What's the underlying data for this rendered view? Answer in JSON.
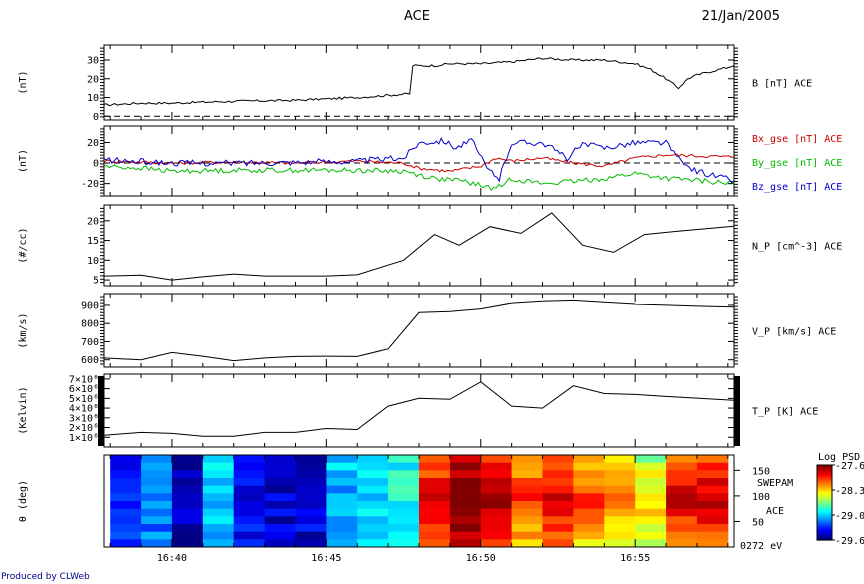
{
  "header": {
    "title": "ACE",
    "date": "21/Jan/2005"
  },
  "footer": {
    "credit": "Produced by CLWeb"
  },
  "chart_data": {
    "type": "line",
    "x_axis": {
      "tick_labels": [
        "16:40",
        "16:45",
        "16:50",
        "16:55"
      ],
      "tick_minutes": [
        40,
        45,
        50,
        55
      ],
      "range_minutes": [
        37.8,
        58.2
      ]
    },
    "panels": [
      {
        "ylabel": "(nT)",
        "ylim": [
          -2,
          38
        ],
        "ticks": [
          0,
          10,
          20,
          30
        ],
        "legend": [
          {
            "text": "B [nT] ACE",
            "color": "#000000"
          }
        ],
        "zero_line": true,
        "series": [
          {
            "name": "B [nT] ACE",
            "color": "#000000",
            "noise": 0.6,
            "points": [
              [
                37.8,
                6
              ],
              [
                39,
                7
              ],
              [
                40,
                7
              ],
              [
                42,
                8
              ],
              [
                44,
                8.5
              ],
              [
                46,
                10
              ],
              [
                47.7,
                12
              ],
              [
                47.8,
                27
              ],
              [
                48.5,
                27
              ],
              [
                49,
                28
              ],
              [
                50,
                28
              ],
              [
                51,
                29
              ],
              [
                52,
                31
              ],
              [
                53,
                30
              ],
              [
                54,
                30
              ],
              [
                55,
                28
              ],
              [
                55.5,
                25
              ],
              [
                56,
                20
              ],
              [
                56.4,
                15
              ],
              [
                56.7,
                20
              ],
              [
                57,
                22
              ],
              [
                58.2,
                27
              ]
            ]
          }
        ]
      },
      {
        "ylabel": "(nT)",
        "ylim": [
          -32,
          36
        ],
        "ticks": [
          -20,
          0,
          20
        ],
        "legend": [
          {
            "text": "Bx_gse [nT] ACE",
            "color": "#cc0000"
          },
          {
            "text": "By_gse [nT] ACE",
            "color": "#00bb00"
          },
          {
            "text": "Bz_gse [nT] ACE",
            "color": "#0000cc"
          }
        ],
        "zero_line": true,
        "series": [
          {
            "name": "Bx_gse [nT] ACE",
            "color": "#cc0000",
            "noise": 1.5,
            "points": [
              [
                37.8,
                2
              ],
              [
                40,
                0
              ],
              [
                42,
                1
              ],
              [
                44,
                0
              ],
              [
                46,
                2
              ],
              [
                47.5,
                0
              ],
              [
                48,
                -5
              ],
              [
                49,
                -8
              ],
              [
                50,
                -3
              ],
              [
                50.5,
                5
              ],
              [
                51,
                2
              ],
              [
                52,
                5
              ],
              [
                53,
                0
              ],
              [
                54,
                -3
              ],
              [
                55,
                5
              ],
              [
                56,
                8
              ],
              [
                57,
                7
              ],
              [
                58.2,
                6
              ]
            ]
          },
          {
            "name": "By_gse [nT] ACE",
            "color": "#00bb00",
            "noise": 2.5,
            "points": [
              [
                37.8,
                -3
              ],
              [
                39,
                -5
              ],
              [
                40,
                -8
              ],
              [
                42,
                -7
              ],
              [
                44,
                -7
              ],
              [
                46,
                -7
              ],
              [
                47.5,
                -8
              ],
              [
                48.5,
                -15
              ],
              [
                49.5,
                -18
              ],
              [
                50,
                -22
              ],
              [
                50.5,
                -25
              ],
              [
                51,
                -15
              ],
              [
                52,
                -20
              ],
              [
                53,
                -18
              ],
              [
                54,
                -15
              ],
              [
                55,
                -10
              ],
              [
                56,
                -15
              ],
              [
                57,
                -17
              ],
              [
                58.2,
                -20
              ]
            ]
          },
          {
            "name": "Bz_gse [nT] ACE",
            "color": "#0000cc",
            "noise": 3,
            "points": [
              [
                37.8,
                3
              ],
              [
                40,
                0
              ],
              [
                42,
                0
              ],
              [
                44,
                1
              ],
              [
                46,
                2
              ],
              [
                47.5,
                5
              ],
              [
                48,
                20
              ],
              [
                48.8,
                22
              ],
              [
                49.2,
                15
              ],
              [
                49.7,
                22
              ],
              [
                50.2,
                -5
              ],
              [
                50.6,
                -15
              ],
              [
                51,
                20
              ],
              [
                52,
                20
              ],
              [
                52.8,
                5
              ],
              [
                53.3,
                18
              ],
              [
                54,
                15
              ],
              [
                55,
                20
              ],
              [
                56,
                20
              ],
              [
                56.5,
                0
              ],
              [
                57,
                -8
              ],
              [
                58.2,
                -17
              ]
            ]
          }
        ]
      },
      {
        "ylabel": "(#/cc)",
        "ylim": [
          3.5,
          24
        ],
        "ticks": [
          5,
          10,
          15,
          20
        ],
        "legend": [
          {
            "text": "N_P [cm^-3] ACE",
            "color": "#000000"
          }
        ],
        "series": [
          {
            "name": "N_P [cm^-3] ACE",
            "color": "#000000",
            "points": [
              [
                37.8,
                6
              ],
              [
                39,
                6.2
              ],
              [
                40,
                5
              ],
              [
                41,
                5.8
              ],
              [
                42,
                6.5
              ],
              [
                43,
                6
              ],
              [
                44,
                6
              ],
              [
                45,
                6
              ],
              [
                46,
                6.3
              ],
              [
                47.5,
                10
              ],
              [
                48.5,
                16.5
              ],
              [
                49.3,
                13.8
              ],
              [
                50.3,
                18.5
              ],
              [
                51.3,
                16.8
              ],
              [
                52.3,
                22
              ],
              [
                53.3,
                13.8
              ],
              [
                54.3,
                12
              ],
              [
                55.3,
                16.5
              ],
              [
                56.3,
                17.3
              ],
              [
                58.2,
                18.6
              ]
            ]
          }
        ]
      },
      {
        "ylabel": "(km/s)",
        "ylim": [
          560,
          960
        ],
        "ticks": [
          600,
          700,
          800,
          900
        ],
        "legend": [
          {
            "text": "V_P [km/s] ACE",
            "color": "#000000"
          }
        ],
        "series": [
          {
            "name": "V_P [km/s] ACE",
            "color": "#000000",
            "points": [
              [
                37.8,
                610
              ],
              [
                39,
                600
              ],
              [
                40,
                640
              ],
              [
                41,
                620
              ],
              [
                42,
                595
              ],
              [
                43,
                610
              ],
              [
                44,
                618
              ],
              [
                45,
                620
              ],
              [
                46,
                618
              ],
              [
                47,
                660
              ],
              [
                48,
                860
              ],
              [
                49,
                865
              ],
              [
                50,
                880
              ],
              [
                51,
                910
              ],
              [
                52,
                920
              ],
              [
                53,
                925
              ],
              [
                54,
                915
              ],
              [
                55,
                905
              ],
              [
                56,
                900
              ],
              [
                57,
                895
              ],
              [
                58.2,
                890
              ]
            ]
          }
        ]
      },
      {
        "ylabel": "(Kelvin)",
        "ylim": [
          0,
          7500000
        ],
        "ticks": [
          1000000,
          2000000,
          3000000,
          4000000,
          5000000,
          6000000,
          7000000
        ],
        "tick_labels": [
          "1×10⁶",
          "2×10⁶",
          "3×10⁶",
          "4×10⁶",
          "5×10⁶",
          "6×10⁶",
          "7×10⁶"
        ],
        "legend": [
          {
            "text": "T_P [K] ACE",
            "color": "#000000"
          }
        ],
        "series": [
          {
            "name": "T_P [K] ACE",
            "color": "#000000",
            "points": [
              [
                37.8,
                1200000
              ],
              [
                39,
                1500000
              ],
              [
                40,
                1400000
              ],
              [
                41,
                1100000
              ],
              [
                42,
                1100000
              ],
              [
                43,
                1500000
              ],
              [
                44,
                1500000
              ],
              [
                45,
                1900000
              ],
              [
                46,
                1800000
              ],
              [
                47,
                4200000
              ],
              [
                48,
                5000000
              ],
              [
                49,
                4900000
              ],
              [
                50,
                6700000
              ],
              [
                51,
                4200000
              ],
              [
                52,
                4000000
              ],
              [
                53,
                6300000
              ],
              [
                54,
                5500000
              ],
              [
                55,
                5400000
              ],
              [
                56,
                5200000
              ],
              [
                58.2,
                4800000
              ]
            ]
          }
        ]
      }
    ],
    "heatmap": {
      "ylabel": "θ (deg)",
      "ylim": [
        0,
        180
      ],
      "ticks": [
        50,
        100,
        150
      ],
      "right_labels": [
        "SWEPAM",
        "ACE",
        "0272 eV"
      ],
      "colorbar": {
        "title": "Log PSD",
        "range": [
          -29.6,
          -27.6
        ],
        "tick_labels": [
          "-27.6",
          "-28.3",
          "-29.0",
          "-29.6"
        ]
      },
      "columns_start_minutes": [
        38,
        39,
        40,
        41,
        42,
        43,
        44,
        45,
        46,
        47,
        48,
        49,
        50,
        51,
        52,
        53,
        54,
        55,
        56,
        57
      ],
      "column_levels": [
        0.15,
        0.25,
        0.05,
        0.32,
        0.12,
        0.08,
        0.08,
        0.3,
        0.36,
        0.38,
        0.78,
        0.93,
        0.84,
        0.7,
        0.78,
        0.68,
        0.62,
        0.55,
        0.78,
        0.8
      ]
    }
  }
}
